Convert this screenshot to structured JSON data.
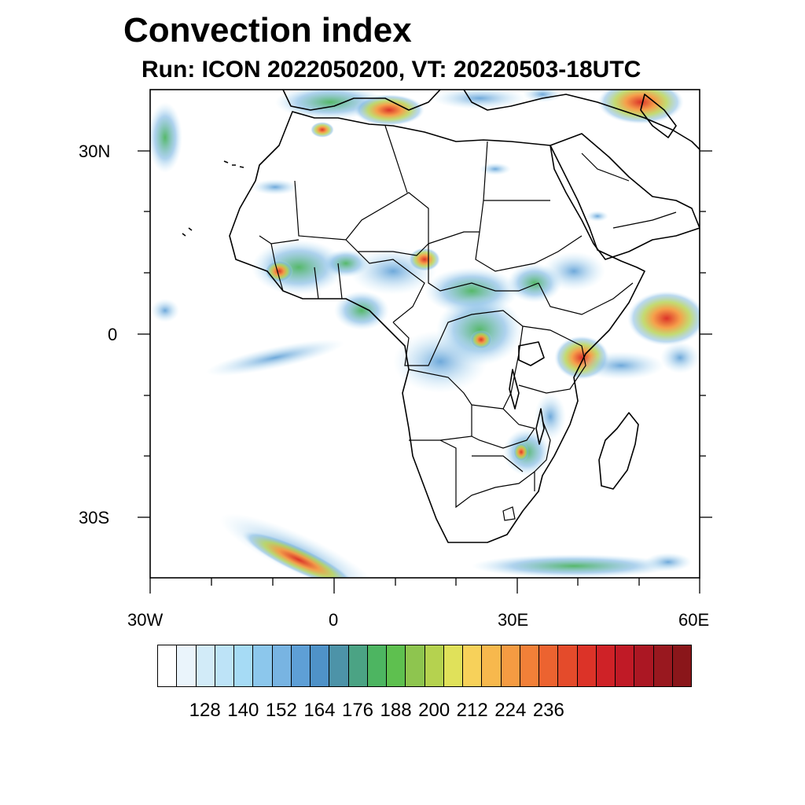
{
  "title": "Convection index",
  "subtitle": "Run: ICON 2022050200,  VT: 20220503-18UTC",
  "axes": {
    "lat_labels": [
      "30N",
      "0",
      "30S"
    ],
    "lon_labels": [
      "30W",
      "0",
      "30E",
      "60E"
    ]
  },
  "colorbar": {
    "tick_labels": [
      "128",
      "140",
      "152",
      "164",
      "176",
      "188",
      "200",
      "212",
      "224",
      "236"
    ],
    "colors": [
      "#ffffff",
      "#eaf4fb",
      "#d2ebf8",
      "#bde3f7",
      "#a6dbf5",
      "#8cc7ec",
      "#78b4e2",
      "#5e9fd6",
      "#4f92c8",
      "#4d93a8",
      "#4ba384",
      "#4db561",
      "#5ec04f",
      "#8ec54f",
      "#b5d24f",
      "#e0e15a",
      "#f7d15a",
      "#f7b84d",
      "#f59b42",
      "#f28038",
      "#ec6330",
      "#e44b2b",
      "#dc3328",
      "#cf2227",
      "#c01a26",
      "#ab1723",
      "#99181f",
      "#8a161a"
    ]
  },
  "chart_data": {
    "type": "heatmap",
    "title": "Convection index",
    "subtitle": "Run: ICON 2022050200,  VT: 20220503-18UTC",
    "x_range_deg": [
      -30,
      60
    ],
    "y_range_deg": [
      -40,
      40
    ],
    "levels": [
      128,
      140,
      152,
      164,
      176,
      188,
      200,
      212,
      224,
      236
    ]
  }
}
